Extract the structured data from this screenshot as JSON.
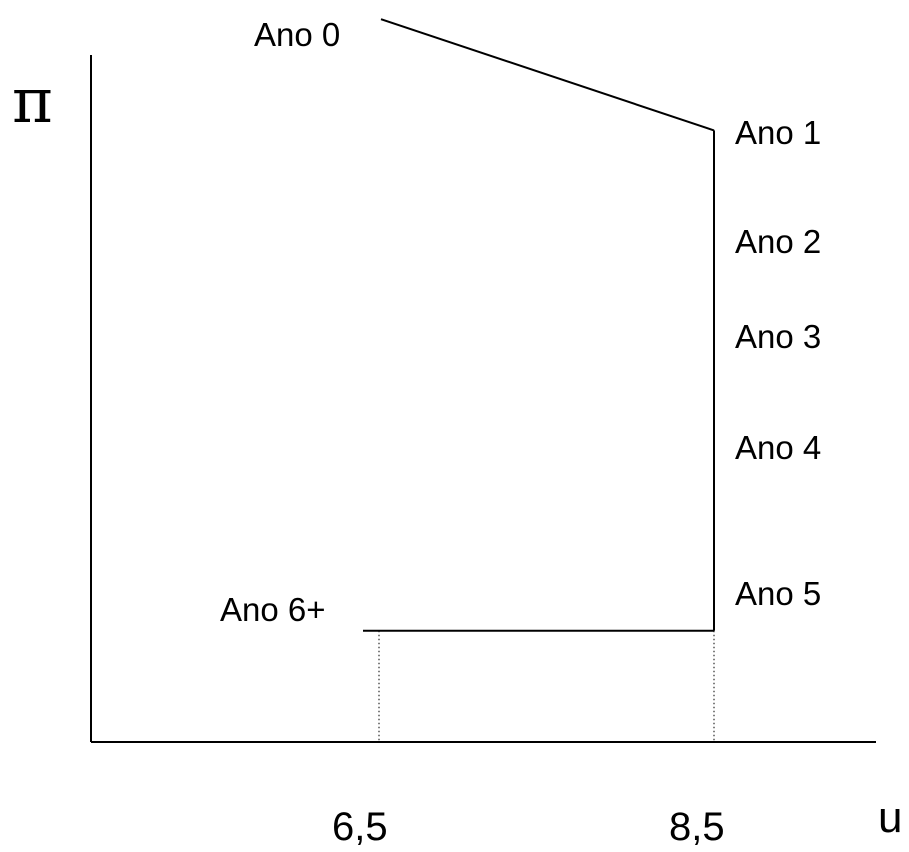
{
  "chart_data": {
    "type": "line",
    "title": "",
    "xlabel": "u",
    "ylabel": "π",
    "x_ticks": [
      "6,5",
      "8,5"
    ],
    "x_tick_values": [
      6.5,
      8.5
    ],
    "grid": false,
    "colors": {
      "line": "#000000",
      "guide": "#555555"
    },
    "series": [
      {
        "points": [
          {
            "label": "Ano 0",
            "x": 6.5,
            "y": 6.5
          },
          {
            "label": "Ano 1",
            "x": 8.5,
            "y": 5.5
          },
          {
            "label": "Ano 2",
            "x": 8.5,
            "y": 4.6
          },
          {
            "label": "Ano 3",
            "x": 8.5,
            "y": 3.8
          },
          {
            "label": "Ano 4",
            "x": 8.5,
            "y": 2.9
          },
          {
            "label": "Ano 5",
            "x": 8.5,
            "y": 1.5
          },
          {
            "label": "Ano 6+",
            "x": 6.5,
            "y": 1.0
          }
        ]
      }
    ]
  }
}
